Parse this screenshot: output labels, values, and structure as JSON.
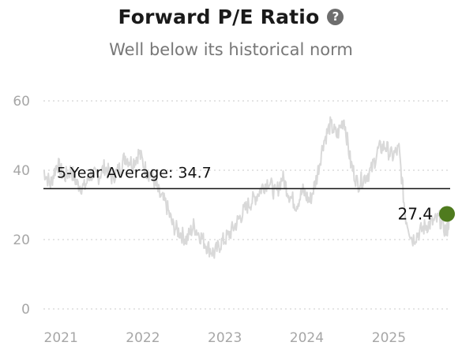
{
  "header": {
    "title": "Forward P/E Ratio",
    "help_icon": "question-circle-icon",
    "subtitle": "Well below its historical norm"
  },
  "colors": {
    "series": "#d9d9d9",
    "average_line": "#111111",
    "current_marker": "#4f7b1e",
    "grid": "#d4d4d4",
    "tick": "#a6a6a6"
  },
  "chart_data": {
    "type": "line",
    "title": "Forward P/E Ratio",
    "subtitle": "Well below its historical norm",
    "xlabel": "",
    "ylabel": "",
    "x_ticks": [
      "2021",
      "2022",
      "2023",
      "2024",
      "2025"
    ],
    "y_ticks": [
      "0",
      "20",
      "40",
      "60"
    ],
    "xlim": [
      "2020-10-15",
      "2025-10-01"
    ],
    "ylim": [
      0,
      60
    ],
    "grid": "horizontal dotted",
    "series": [
      {
        "x": [
          "2020-10-15",
          "2020-11-15",
          "2020-12-15",
          "2021-01-15",
          "2021-02-15",
          "2021-03-15",
          "2021-04-15",
          "2021-05-15",
          "2021-06-15",
          "2021-07-15",
          "2021-08-15",
          "2021-09-15",
          "2021-10-15",
          "2021-11-15",
          "2021-12-15",
          "2022-01-15",
          "2022-02-15",
          "2022-03-15",
          "2022-04-15",
          "2022-05-15",
          "2022-06-15",
          "2022-07-15",
          "2022-08-15",
          "2022-09-15",
          "2022-10-15",
          "2022-11-15",
          "2022-12-15",
          "2023-01-15",
          "2023-02-15",
          "2023-03-15",
          "2023-04-15",
          "2023-05-15",
          "2023-06-15",
          "2023-07-15",
          "2023-08-15",
          "2023-09-15",
          "2023-10-15",
          "2023-11-15",
          "2023-12-15",
          "2024-01-15",
          "2024-02-15",
          "2024-03-15",
          "2024-04-15",
          "2024-05-15",
          "2024-06-15",
          "2024-07-15",
          "2024-08-15",
          "2024-09-15",
          "2024-10-15",
          "2024-11-15",
          "2024-12-15",
          "2025-01-15",
          "2025-02-15",
          "2025-03-15",
          "2025-04-15",
          "2025-05-15",
          "2025-06-15",
          "2025-07-15",
          "2025-08-15",
          "2025-09-15",
          "2025-10-01"
        ],
        "values": [
          40,
          36,
          42,
          38,
          40,
          36,
          35,
          39,
          38,
          41,
          38,
          40,
          44,
          42,
          45,
          40,
          38,
          33,
          30,
          24,
          22,
          20,
          24,
          21,
          18,
          16,
          19,
          21,
          24,
          27,
          30,
          32,
          35,
          37,
          33,
          38,
          33,
          30,
          34,
          31,
          38,
          48,
          53,
          50,
          55,
          42,
          36,
          38,
          40,
          46,
          47,
          44,
          46,
          27,
          20,
          22,
          24,
          25,
          26,
          22,
          27.4
        ]
      }
    ],
    "reference_line": {
      "label": "5-Year Average: 34.7",
      "value": 34.7
    },
    "current_value": {
      "label": "27.4",
      "value": 27.4,
      "date": "2025-10-01"
    }
  }
}
